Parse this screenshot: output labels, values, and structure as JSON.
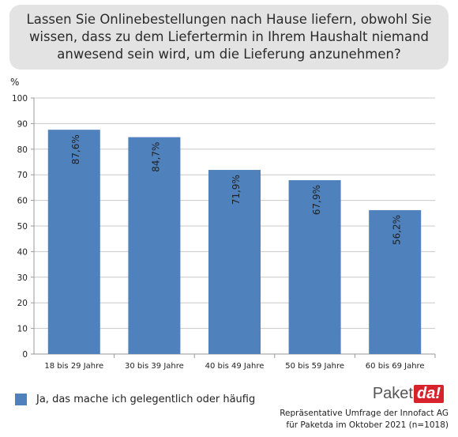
{
  "question": "Lassen Sie Onlinebestellungen nach Hause liefern, obwohl Sie wissen, dass zu dem Liefertermin in Ihrem Haushalt niemand anwesend sein wird, um die Lieferung anzunehmen?",
  "chart_data": {
    "type": "bar",
    "title": "",
    "ylabel": "%",
    "xlabel": "",
    "ylim": [
      0,
      100
    ],
    "yticks": [
      0,
      10,
      20,
      30,
      40,
      50,
      60,
      70,
      80,
      90,
      100
    ],
    "categories": [
      "18 bis 29 Jahre",
      "30 bis 39 Jahre",
      "40 bis 49 Jahre",
      "50 bis 59 Jahre",
      "60 bis 69 Jahre"
    ],
    "series": [
      {
        "name": "Ja, das mache ich gelegentlich oder häufig",
        "values": [
          87.6,
          84.7,
          71.9,
          67.9,
          56.2
        ],
        "labels": [
          "87,6%",
          "84,7%",
          "71,9%",
          "67,9%",
          "56,2%"
        ]
      }
    ],
    "grid": true,
    "legend_position": "bottom-left",
    "bar_color": "#4f81bd"
  },
  "logo": {
    "part1": "Paket",
    "part2": "da!"
  },
  "source_line1": "Repräsentative Umfrage der Innofact AG",
  "source_line2": "für Paketda im Oktober 2021 (n=1018)"
}
